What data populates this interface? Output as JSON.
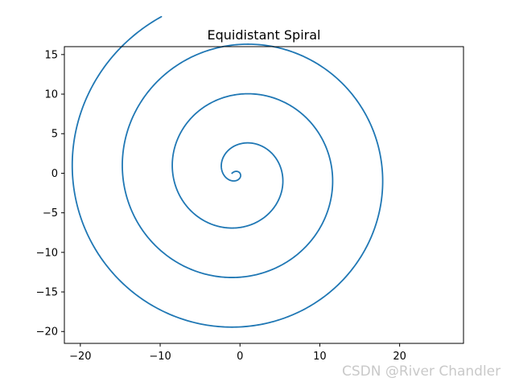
{
  "watermark": "CSDN @River Chandler",
  "chart_data": {
    "type": "line",
    "title": "Equidistant Spiral",
    "xlabel": "",
    "ylabel": "",
    "xlim": [
      -22.0,
      28.0
    ],
    "ylim": [
      -21.5,
      16.0
    ],
    "xticks": [
      -20,
      -10,
      0,
      10,
      20
    ],
    "yticks": [
      15,
      10,
      5,
      0,
      -5,
      -10,
      -15,
      -20
    ],
    "xtick_labels": [
      "−20",
      "−10",
      "0",
      "10",
      "20"
    ],
    "ytick_labels": [
      "15",
      "10",
      "5",
      "0",
      "−5",
      "−10",
      "−15",
      "−20"
    ],
    "grid": false,
    "series": [
      {
        "color": "#1f77b4",
        "equation": "r = 1 + theta, x = -r*cos(theta), y = -r*sin(theta)",
        "theta_range": [
          -23.1,
          0
        ]
      }
    ]
  }
}
